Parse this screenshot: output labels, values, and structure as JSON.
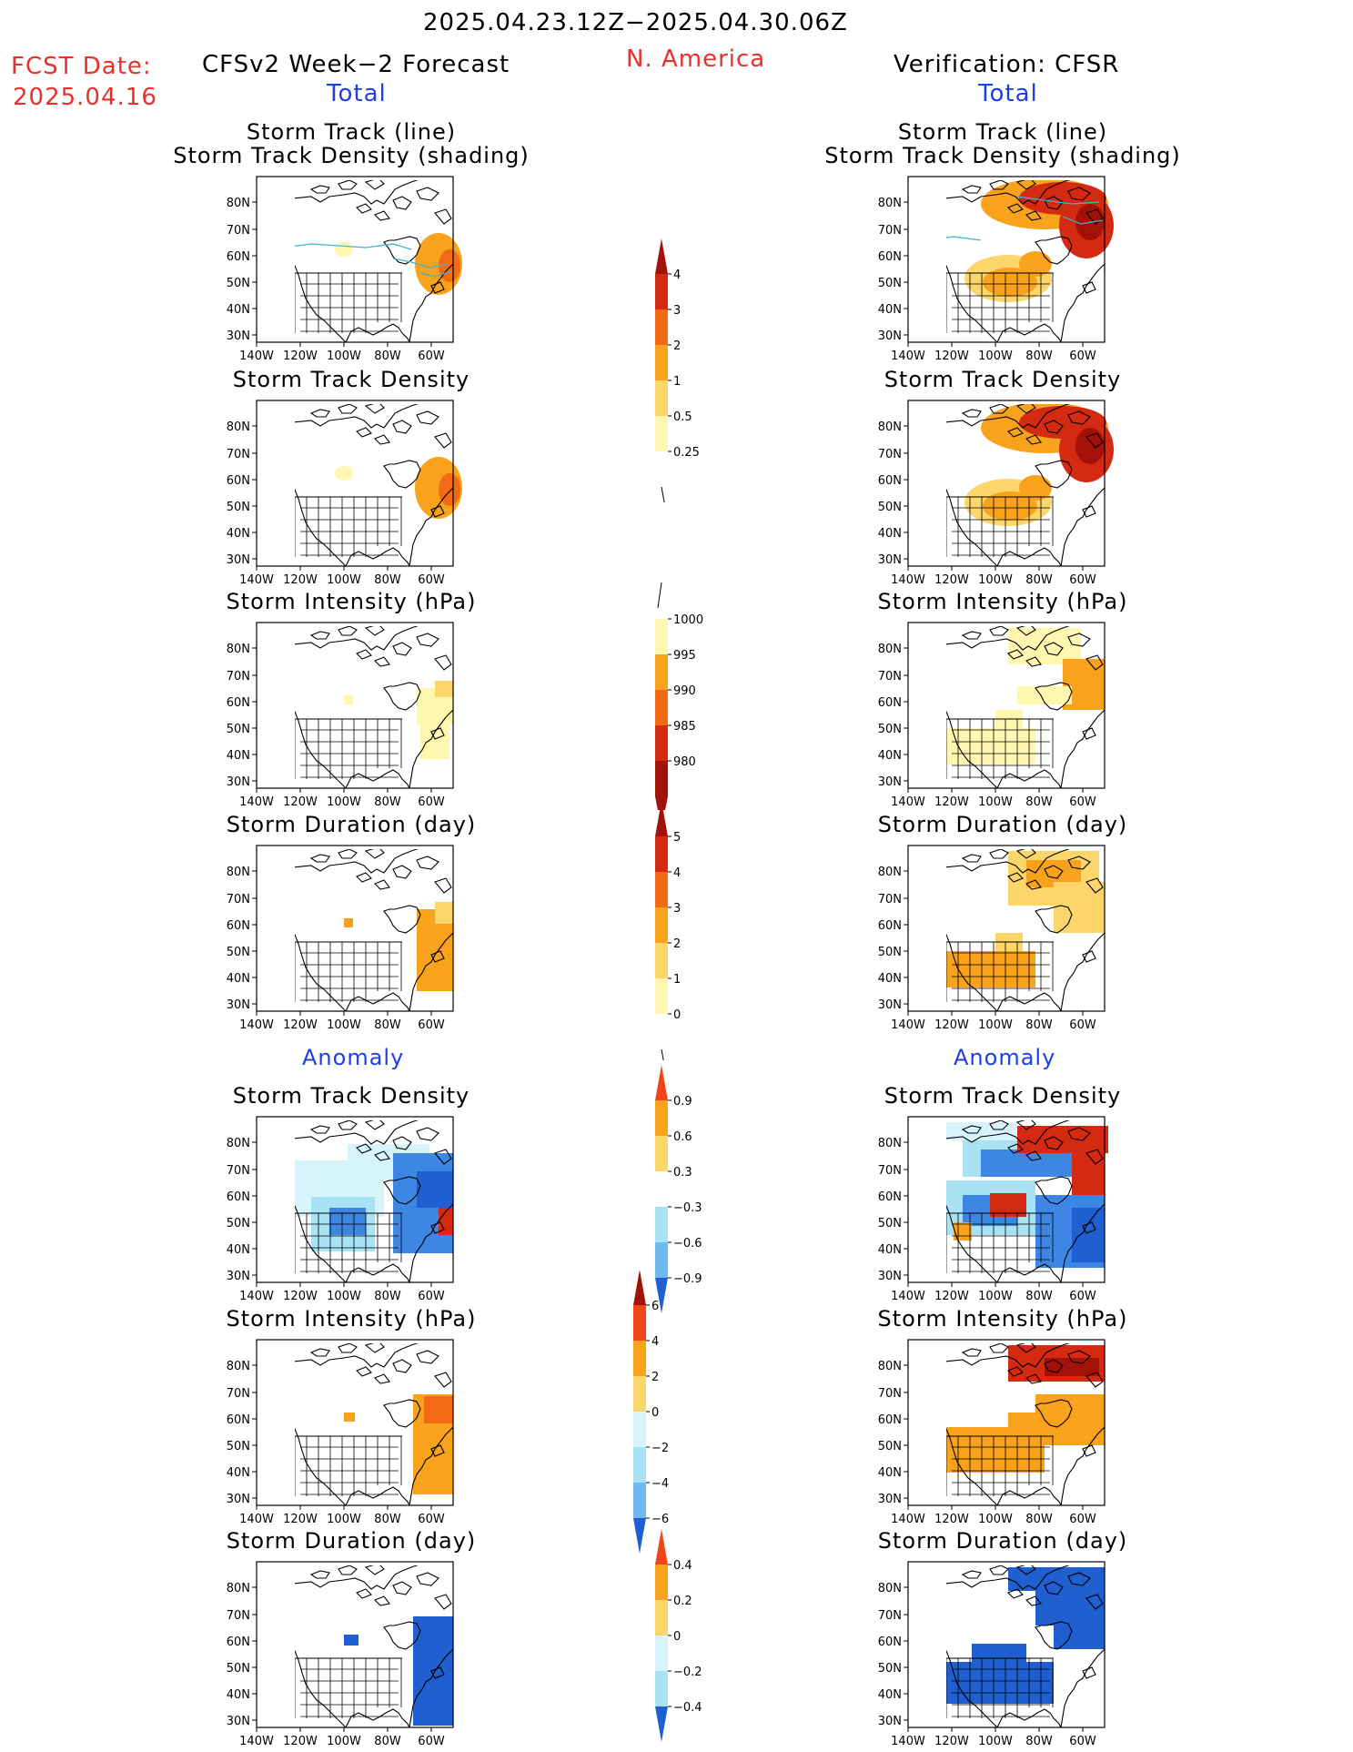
{
  "header": {
    "date_range": "2025.04.23.12Z−2025.04.30.06Z",
    "region": "N. America",
    "fcst_label": "FCST Date:",
    "fcst_date": "2025.04.16",
    "left_title": "CFSv2 Week−2 Forecast",
    "right_title": "Verification: CFSR"
  },
  "sections": {
    "total": "Total",
    "anomaly": "Anomaly"
  },
  "panel_titles": {
    "track_line_1": "Storm Track (line)",
    "track_line_2": "Storm Track Density (shading)",
    "density": "Storm Track Density",
    "intensity": "Storm Intensity (hPa)",
    "duration": "Storm Duration (day)"
  },
  "axes": {
    "lat_labels": [
      "80N",
      "70N",
      "60N",
      "50N",
      "40N",
      "30N"
    ],
    "lon_labels": [
      "140W",
      "120W",
      "100W",
      "80W",
      "60W"
    ]
  },
  "colorbars": {
    "density_total": [
      "4",
      "3",
      "2",
      "1",
      "0.5",
      "0.25"
    ],
    "intensity_total": [
      "1000",
      "995",
      "990",
      "985",
      "980"
    ],
    "duration_total": [
      "5",
      "4",
      "3",
      "2",
      "1",
      "0"
    ],
    "density_anom": [
      "0.9",
      "0.6",
      "0.3",
      "−0.3",
      "−0.6",
      "−0.9"
    ],
    "intensity_anom": [
      "6",
      "4",
      "2",
      "0",
      "−2",
      "−4",
      "−6"
    ],
    "duration_anom": [
      "0.4",
      "0.2",
      "0",
      "−0.2",
      "−0.4"
    ]
  },
  "colors": {
    "warm": [
      "#fff6b0",
      "#fcd66a",
      "#f9a21b",
      "#f26b14",
      "#d42a12",
      "#a31209"
    ],
    "cool": [
      "#d7f3fb",
      "#a8e3f5",
      "#70b9f0",
      "#3e86e4",
      "#1f5fd0"
    ],
    "line_left": "#3fb4cf",
    "line_right": "#3fb4cf",
    "title_red": "#e8312a",
    "title_blue": "#1c3fe6"
  }
}
